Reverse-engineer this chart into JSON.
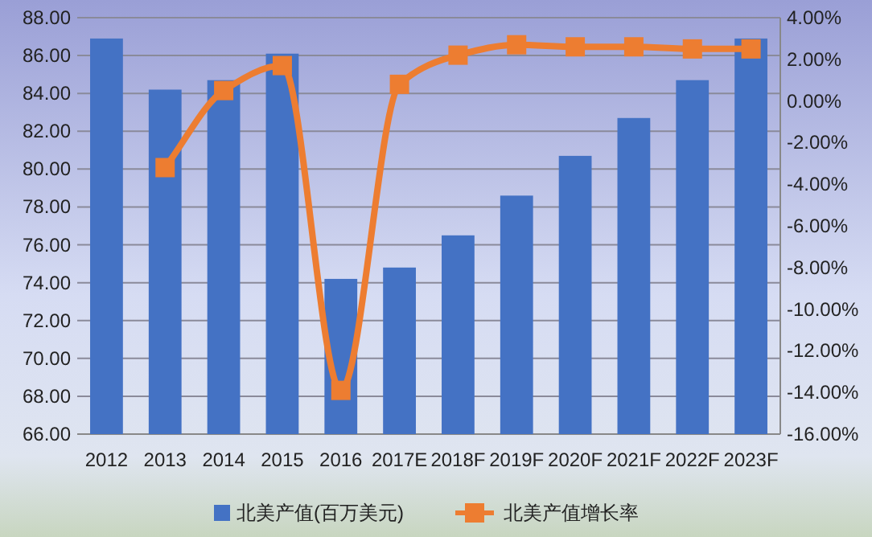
{
  "chart_data": {
    "type": "bar",
    "categories": [
      "2012",
      "2013",
      "2014",
      "2015",
      "2016",
      "2017E",
      "2018F",
      "2019F",
      "2020F",
      "2021F",
      "2022F",
      "2023F"
    ],
    "series": [
      {
        "name": "北美产值(百万美元)",
        "color": "#4472c4",
        "values": [
          86.9,
          84.2,
          84.7,
          86.1,
          74.2,
          74.8,
          76.5,
          78.6,
          80.7,
          82.7,
          84.7,
          86.9
        ]
      },
      {
        "name": "北美产值增长率",
        "type": "line",
        "axis": "y2",
        "color": "#ed7d31",
        "marker": "square",
        "values": [
          null,
          -3.2,
          0.5,
          1.7,
          -13.9,
          0.8,
          2.2,
          2.7,
          2.6,
          2.6,
          2.5,
          2.5
        ]
      }
    ],
    "ylim": [
      66,
      88
    ],
    "yticks": [
      {
        "value": 66,
        "label": "66.00"
      },
      {
        "value": 68,
        "label": "68.00"
      },
      {
        "value": 70,
        "label": "70.00"
      },
      {
        "value": 72,
        "label": "72.00"
      },
      {
        "value": 74,
        "label": "74.00"
      },
      {
        "value": 76,
        "label": "76.00"
      },
      {
        "value": 78,
        "label": "78.00"
      },
      {
        "value": 80,
        "label": "80.00"
      },
      {
        "value": 82,
        "label": "82.00"
      },
      {
        "value": 84,
        "label": "84.00"
      },
      {
        "value": 86,
        "label": "86.00"
      },
      {
        "value": 88,
        "label": "88.00"
      }
    ],
    "y2lim": [
      -16,
      4
    ],
    "y2ticks": [
      {
        "value": -16,
        "label": "-16.00%"
      },
      {
        "value": -14,
        "label": "-14.00%"
      },
      {
        "value": -12,
        "label": "-12.00%"
      },
      {
        "value": -10,
        "label": "-10.00%"
      },
      {
        "value": -8,
        "label": "-8.00%"
      },
      {
        "value": -6,
        "label": "-6.00%"
      },
      {
        "value": -4,
        "label": "-4.00%"
      },
      {
        "value": -2,
        "label": "-2.00%"
      },
      {
        "value": 0,
        "label": "0.00%"
      },
      {
        "value": 2,
        "label": "2.00%"
      },
      {
        "value": 4,
        "label": "4.00%"
      }
    ],
    "grid": "y",
    "legend": "bottom"
  }
}
